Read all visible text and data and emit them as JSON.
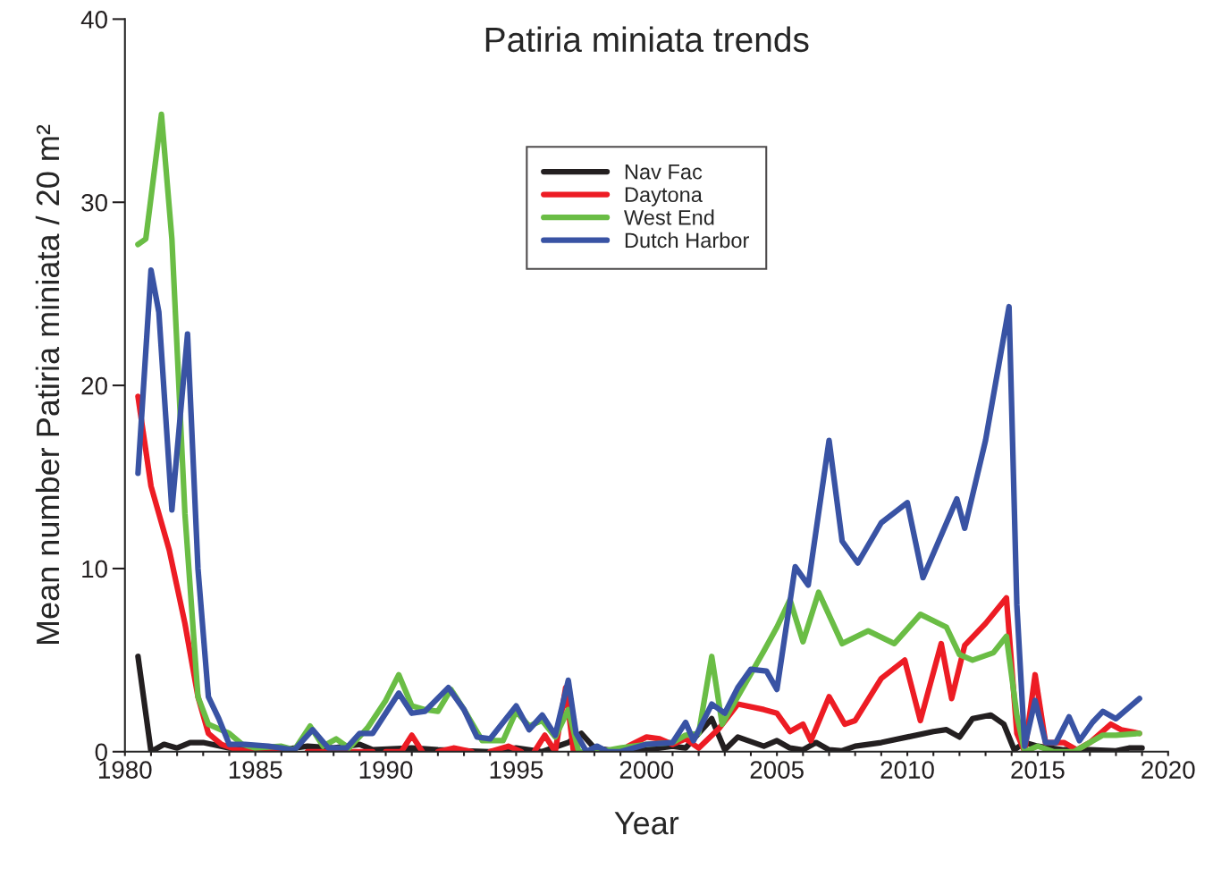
{
  "chart_data": {
    "type": "line",
    "title": "Patiria miniata trends",
    "xlabel": "Year",
    "ylabel": "Mean number Patiria miniata / 20 m²",
    "xlim": [
      1980,
      2020
    ],
    "ylim": [
      0,
      40
    ],
    "xticks": [
      1980,
      {
        "value": 1981,
        "label": null
      },
      {
        "value": 1982,
        "label": null
      },
      {
        "value": 1983,
        "label": null
      },
      {
        "value": 1984,
        "label": null
      },
      1985,
      {
        "value": 1986,
        "label": null
      },
      {
        "value": 1987,
        "label": null
      },
      {
        "value": 1988,
        "label": null
      },
      {
        "value": 1989,
        "label": null
      },
      1990,
      {
        "value": 1991,
        "label": null
      },
      {
        "value": 1992,
        "label": null
      },
      {
        "value": 1993,
        "label": null
      },
      {
        "value": 1994,
        "label": null
      },
      1995,
      {
        "value": 1996,
        "label": null
      },
      {
        "value": 1997,
        "label": null
      },
      {
        "value": 1998,
        "label": null
      },
      {
        "value": 1999,
        "label": null
      },
      2000,
      {
        "value": 2001,
        "label": null
      },
      {
        "value": 2002,
        "label": null
      },
      {
        "value": 2003,
        "label": null
      },
      {
        "value": 2004,
        "label": null
      },
      2005,
      {
        "value": 2006,
        "label": null
      },
      {
        "value": 2007,
        "label": null
      },
      {
        "value": 2008,
        "label": null
      },
      {
        "value": 2009,
        "label": null
      },
      2010,
      {
        "value": 2011,
        "label": null
      },
      {
        "value": 2012,
        "label": null
      },
      {
        "value": 2013,
        "label": null
      },
      {
        "value": 2014,
        "label": null
      },
      2015,
      {
        "value": 2016,
        "label": null
      },
      {
        "value": 2017,
        "label": null
      },
      {
        "value": 2018,
        "label": null
      },
      {
        "value": 2019,
        "label": null
      },
      2020
    ],
    "yticks": [
      0,
      10,
      20,
      30,
      40
    ],
    "grid": false,
    "legend": "top",
    "marker": "none",
    "line_style": "solid",
    "series": [
      {
        "name": "Nav Fac",
        "color": "#231f20",
        "x": [
          1980.5,
          1981.0,
          1981.5,
          1982.0,
          1982.5,
          1983.0,
          1984.0,
          1985.0,
          1986.0,
          1987.0,
          1988.0,
          1989.0,
          1989.5,
          1991.0,
          1992.0,
          1993.0,
          1994.0,
          1995.0,
          1996.0,
          1997.0,
          1997.5,
          1998.0,
          1999.0,
          2000.0,
          2001.0,
          2001.5,
          2002.5,
          2003.0,
          2003.5,
          2004.5,
          2005.0,
          2005.5,
          2006.0,
          2006.5,
          2007.0,
          2007.5,
          2008.0,
          2009.0,
          2010.0,
          2011.0,
          2011.5,
          2012.0,
          2012.5,
          2013.2,
          2013.7,
          2014.1,
          2014.5,
          2015.0,
          2016.0,
          2017.0,
          2018.0,
          2018.5,
          2019.0
        ],
        "values": [
          5.2,
          0,
          0.4,
          0.2,
          0.5,
          0.5,
          0.2,
          0.1,
          0.1,
          0.3,
          0.2,
          0.4,
          0.1,
          0.2,
          0.1,
          0.05,
          0,
          0.2,
          0,
          0.5,
          1.0,
          0.2,
          0,
          0.1,
          0.3,
          0.2,
          1.8,
          0.1,
          0.8,
          0.3,
          0.6,
          0.2,
          0.1,
          0.5,
          0.1,
          0.05,
          0.3,
          0.5,
          0.8,
          1.1,
          1.2,
          0.8,
          1.8,
          2.0,
          1.5,
          0.1,
          0.5,
          0.3,
          0.1,
          0.1,
          0.05,
          0.2,
          0.2
        ]
      },
      {
        "name": "Daytona",
        "color": "#ed1c24",
        "x": [
          1980.5,
          1981.0,
          1981.7,
          1982.3,
          1982.8,
          1983.2,
          1983.7,
          1984.3,
          1985.0,
          1985.5,
          1986.0,
          1986.5,
          1987.0,
          1988.0,
          1989.0,
          1989.5,
          1989.8,
          1990.0,
          1990.6,
          1991.0,
          1991.4,
          1991.7,
          1992.0,
          1992.6,
          1993.3,
          1993.6,
          1994.0,
          1994.7,
          1995.2,
          1995.5,
          1995.7,
          1996.1,
          1996.5,
          1996.9,
          1997.2,
          1998.0,
          1999.3,
          2000.0,
          2000.5,
          2001.0,
          2001.5,
          2002.0,
          2002.8,
          2003.5,
          2004.5,
          2005.0,
          2005.5,
          2006.0,
          2006.3,
          2007.0,
          2007.6,
          2008.0,
          2009.0,
          2009.9,
          2010.5,
          2011.3,
          2011.7,
          2012.2,
          2013.0,
          2013.8,
          2014.2,
          2014.5,
          2014.9,
          2015.3,
          2016.0,
          2016.5,
          2017.0,
          2017.8,
          2018.2,
          2018.9
        ],
        "values": [
          19.4,
          14.5,
          11,
          7,
          3,
          1.0,
          0.4,
          0.1,
          0,
          0.1,
          0,
          null,
          0,
          0,
          0,
          0,
          null,
          0,
          0,
          0.9,
          0,
          null,
          0,
          0.2,
          0,
          null,
          0,
          0.3,
          0,
          null,
          0,
          0.9,
          0,
          3.5,
          0,
          null,
          0.3,
          0.8,
          0.7,
          0.4,
          0.7,
          0.2,
          1.3,
          2.6,
          2.3,
          2.1,
          1.1,
          1.5,
          0.6,
          3.0,
          1.5,
          1.7,
          4.0,
          5.0,
          1.7,
          5.9,
          2.9,
          5.8,
          7,
          8.4,
          1,
          0,
          4.2,
          0.5,
          0.5,
          0.1,
          0.5,
          1.5,
          1.2,
          1.0
        ]
      },
      {
        "name": "West End",
        "color": "#6abd45",
        "x": [
          1980.5,
          1980.8,
          1981.4,
          1981.8,
          1982.3,
          1982.8,
          1983.2,
          1984.0,
          1984.5,
          1985.0,
          1986.0,
          1986.5,
          1987.1,
          1987.6,
          1988.1,
          1988.6,
          1989.3,
          1990.0,
          1990.5,
          1991.0,
          1991.5,
          1992.0,
          1992.5,
          1993.0,
          1993.7,
          1994.5,
          1995.0,
          1995.5,
          1996.0,
          1996.5,
          1997.0,
          1997.4,
          1998.2,
          1999.0,
          2000.0,
          2001.0,
          2001.5,
          2002.0,
          2002.5,
          2002.9,
          2003.5,
          2004.5,
          2005.0,
          2005.5,
          2006.0,
          2006.6,
          2007.5,
          2008.5,
          2009.5,
          2010.5,
          2011.5,
          2012.0,
          2012.5,
          2013.3,
          2013.8,
          2014.2,
          2014.5,
          2015.0,
          2015.6,
          2016.4,
          2017.0,
          2017.5,
          2018.0,
          2018.9
        ],
        "values": [
          27.7,
          28,
          34.8,
          28,
          13,
          3,
          1.5,
          1,
          0.4,
          0.2,
          0.3,
          0.1,
          1.4,
          0.3,
          0.7,
          0.2,
          1.3,
          2.8,
          4.2,
          2.5,
          2.3,
          2.2,
          3.4,
          2.3,
          0.6,
          0.6,
          2.2,
          1.4,
          1.7,
          0.8,
          2.3,
          0,
          0,
          0.2,
          0.4,
          0.5,
          0.9,
          1.0,
          5.2,
          1.5,
          3,
          5.5,
          6.8,
          8.3,
          6.0,
          8.7,
          5.9,
          6.6,
          5.9,
          7.5,
          6.8,
          5.3,
          5.0,
          5.4,
          6.3,
          2,
          0,
          0.3,
          0,
          0,
          0.5,
          0.9,
          0.9,
          1.0
        ]
      },
      {
        "name": "Dutch Harbor",
        "color": "#3953a4",
        "x": [
          1980.5,
          1981.0,
          1981.3,
          1981.8,
          1982.4,
          1982.8,
          1983.2,
          1983.6,
          1984.0,
          1984.6,
          1985.5,
          1986.5,
          1987.2,
          1987.8,
          1988.5,
          1989.0,
          1989.5,
          1990.5,
          1991.0,
          1991.5,
          1992.4,
          1993.0,
          1993.5,
          1994.0,
          1995.0,
          1995.5,
          1996.0,
          1996.5,
          1997.0,
          1997.3,
          1997.7,
          1998.1,
          1998.5,
          1999.0,
          2000.0,
          2001.0,
          2001.5,
          2001.8,
          2002.5,
          2003.0,
          2003.5,
          2004.0,
          2004.6,
          2005.0,
          2005.7,
          2006.2,
          2007.0,
          2007.5,
          2008.1,
          2009.0,
          2010.0,
          2010.6,
          2011.9,
          2012.2,
          2013.0,
          2013.9,
          2014.2,
          2014.5,
          2014.9,
          2015.3,
          2015.7,
          2016.2,
          2016.6,
          2017.1,
          2017.5,
          2018.0,
          2018.9
        ],
        "values": [
          15.2,
          26.3,
          24,
          13.2,
          22.8,
          10,
          3,
          1.8,
          0.4,
          0.4,
          0.3,
          0.1,
          1.2,
          0.2,
          0.2,
          1,
          1.0,
          3.2,
          2.1,
          2.2,
          3.5,
          2.3,
          0.8,
          0.7,
          2.5,
          1.2,
          2.0,
          0.9,
          3.9,
          1,
          0,
          0.3,
          0,
          0,
          0.4,
          0.5,
          1.6,
          0.6,
          2.6,
          2.1,
          3.5,
          4.5,
          4.4,
          3.4,
          10.1,
          9.1,
          17.0,
          11.5,
          10.3,
          12.5,
          13.6,
          9.5,
          13.8,
          12.2,
          17,
          24.3,
          8,
          0.3,
          2.8,
          0.5,
          0.5,
          1.9,
          0.6,
          1.6,
          2.2,
          1.8,
          2.9
        ]
      }
    ]
  }
}
